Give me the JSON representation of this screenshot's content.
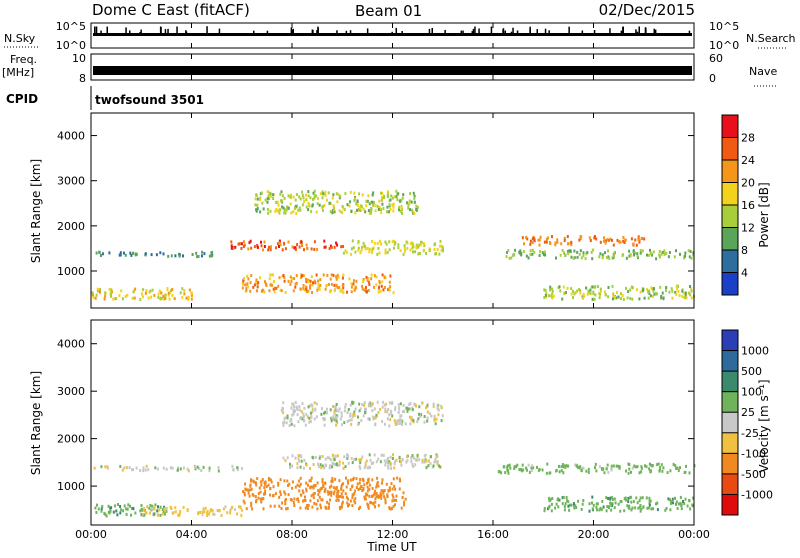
{
  "header": {
    "station": "Dome C East (fitACF)",
    "beam": "Beam 01",
    "date": "02/Dec/2015"
  },
  "aux_panels": {
    "nsky_label": "N.Sky",
    "nsky_ticks": [
      "10^5",
      "10^0"
    ],
    "nsearch_label": "N.Search",
    "nsearch_ticks": [
      "10^5",
      "10^0"
    ],
    "freq_label_line1": "Freq.",
    "freq_label_line2": "[MHz]",
    "freq_ticks": [
      "10",
      "8"
    ],
    "nave_label": "Nave",
    "nave_ticks": [
      "60",
      "0"
    ],
    "cpid_label": "CPID",
    "cpid_value": "twofsound 3501"
  },
  "power_panel": {
    "ylabel": "Slant Range [km]",
    "yticks": [
      "4000",
      "3000",
      "2000",
      "1000"
    ],
    "colorbar_label": "Power [dB]",
    "colorbar_ticks": [
      "28",
      "24",
      "20",
      "16",
      "12",
      "8",
      "4"
    ],
    "colorbar_colors": [
      "#e8101a",
      "#f05a12",
      "#f5951a",
      "#f2d21a",
      "#a8cf3a",
      "#5aa55a",
      "#2e6e9e",
      "#1a40c8"
    ]
  },
  "velocity_panel": {
    "ylabel": "Slant Range [km]",
    "yticks": [
      "4000",
      "3000",
      "2000",
      "1000"
    ],
    "colorbar_label": "Velocity [m s⁻¹]",
    "colorbar_ticks": [
      "1000",
      "500",
      "100",
      "25",
      "-25",
      "-100",
      "-500",
      "-1000"
    ],
    "colorbar_colors": [
      "#2a3fb5",
      "#2f6a9c",
      "#3b8a6e",
      "#6fb45a",
      "#c8c8c8",
      "#f0c040",
      "#f08a20",
      "#e84a12",
      "#e00c0c"
    ]
  },
  "xaxis": {
    "label": "Time UT",
    "ticks": [
      "00:00",
      "04:00",
      "08:00",
      "12:00",
      "16:00",
      "20:00",
      "00:00"
    ]
  },
  "chart_data": [
    {
      "type": "heatmap",
      "title": "Power",
      "xlabel": "Time UT",
      "ylabel": "Slant Range [km]",
      "xlim": [
        0,
        24
      ],
      "ylim": [
        180,
        4500
      ],
      "color_scale": {
        "label": "Power [dB]",
        "range": [
          0,
          32
        ]
      },
      "regions": [
        {
          "t": [
            0.0,
            4.0
          ],
          "r": [
            400,
            650
          ],
          "value": 18
        },
        {
          "t": [
            0.0,
            5.5
          ],
          "r": [
            1350,
            1450
          ],
          "value": 8
        },
        {
          "t": [
            5.5,
            10.0
          ],
          "r": [
            1500,
            1700
          ],
          "value": 26
        },
        {
          "t": [
            6.0,
            12.0
          ],
          "r": [
            550,
            950
          ],
          "value": 22
        },
        {
          "t": [
            6.5,
            13.0
          ],
          "r": [
            2300,
            2800
          ],
          "value": 14
        },
        {
          "t": [
            10.0,
            14.0
          ],
          "r": [
            1400,
            1700
          ],
          "value": 16
        },
        {
          "t": [
            16.5,
            24.0
          ],
          "r": [
            1300,
            1500
          ],
          "value": 12
        },
        {
          "t": [
            17.0,
            22.0
          ],
          "r": [
            1600,
            1800
          ],
          "value": 24
        },
        {
          "t": [
            18.0,
            24.0
          ],
          "r": [
            400,
            700
          ],
          "value": 14
        }
      ]
    },
    {
      "type": "heatmap",
      "title": "Velocity",
      "xlabel": "Time UT",
      "ylabel": "Slant Range [km]",
      "xlim": [
        0,
        24
      ],
      "ylim": [
        180,
        4500
      ],
      "color_scale": {
        "label": "Velocity [m s⁻¹]",
        "range": [
          -1000,
          1000
        ]
      },
      "regions": [
        {
          "t": [
            0.0,
            3.0
          ],
          "r": [
            400,
            650
          ],
          "value": 80
        },
        {
          "t": [
            2.0,
            6.0
          ],
          "r": [
            400,
            600
          ],
          "value": -60
        },
        {
          "t": [
            0.0,
            6.0
          ],
          "r": [
            1350,
            1450
          ],
          "value": 0
        },
        {
          "t": [
            6.0,
            12.5
          ],
          "r": [
            550,
            1200
          ],
          "value": -300
        },
        {
          "t": [
            7.5,
            14.0
          ],
          "r": [
            1400,
            1700
          ],
          "value": 0
        },
        {
          "t": [
            7.5,
            14.0
          ],
          "r": [
            2300,
            2800
          ],
          "value": 0
        },
        {
          "t": [
            16.0,
            24.0
          ],
          "r": [
            1300,
            1500
          ],
          "value": 60
        },
        {
          "t": [
            18.0,
            24.0
          ],
          "r": [
            500,
            800
          ],
          "value": 70
        }
      ]
    }
  ]
}
